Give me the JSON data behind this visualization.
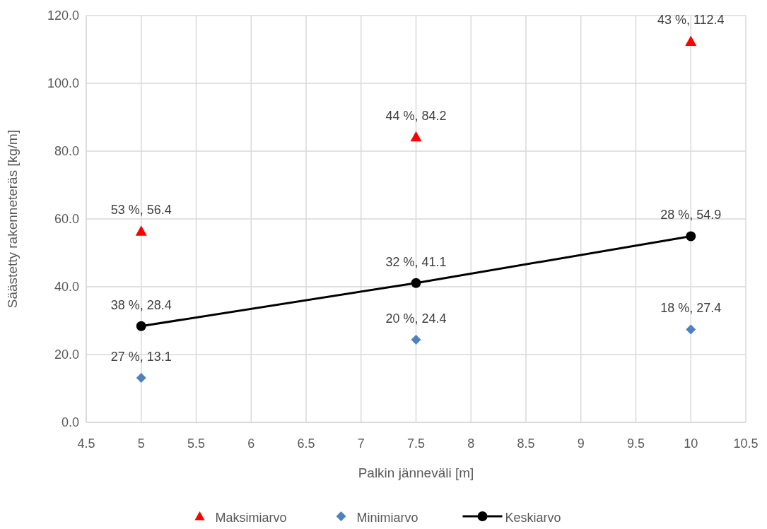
{
  "chart_data": {
    "type": "scatter",
    "xlabel": "Palkin jänneväli [m]",
    "ylabel": "Säästetty rakenneteräs [kg/m]",
    "xlim": [
      4.5,
      10.5
    ],
    "xticks": [
      4.5,
      5,
      5.5,
      6,
      6.5,
      7,
      7.5,
      8,
      8.5,
      9,
      9.5,
      10,
      10.5
    ],
    "ylim": [
      0,
      120
    ],
    "yticks": [
      {
        "value": 0,
        "label": "0.0"
      },
      {
        "value": 20,
        "label": "20.0"
      },
      {
        "value": 40,
        "label": "40.0"
      },
      {
        "value": 60,
        "label": "60.0"
      },
      {
        "value": 80,
        "label": "80.0"
      },
      {
        "value": 100,
        "label": "100.0"
      },
      {
        "value": 120,
        "label": "120.0"
      }
    ],
    "grid": true,
    "legend": "bottom",
    "x": [
      5,
      7.5,
      10
    ],
    "series": [
      {
        "name": "Maksimiarvo",
        "marker": "triangle",
        "color": "#ff0000",
        "values": [
          56.4,
          84.2,
          112.4
        ],
        "value_labels": [
          "53 %, 56.4",
          "44 %, 84.2",
          "43 %, 112.4"
        ]
      },
      {
        "name": "Minimiarvo",
        "marker": "diamond",
        "color": "#4f81bd",
        "values": [
          13.1,
          24.4,
          27.4
        ],
        "value_labels": [
          "27 %, 13.1",
          "20 %, 24.4",
          "18 %, 27.4"
        ]
      },
      {
        "name": "Keskiarvo",
        "type": "line",
        "marker": "circle",
        "line_style": "solid",
        "color": "#000000",
        "values": [
          28.4,
          41.1,
          54.9
        ],
        "value_labels": [
          "38 %, 28.4",
          "32 %, 41.1",
          "28 %, 54.9"
        ]
      }
    ]
  }
}
